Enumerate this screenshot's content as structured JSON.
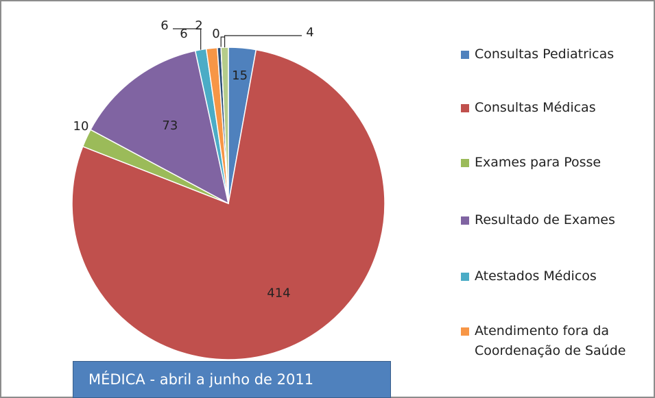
{
  "chart_data": {
    "type": "pie",
    "title": "MÉDICA - abril a junho de 2011",
    "categories": [
      "Consultas Pediatricas",
      "Consultas Médicas",
      "Exames para Posse",
      "Resultado de Exames",
      "Atestados Médicos",
      "Atendimento fora da Coordenação de Saúde",
      null,
      null,
      null
    ],
    "values": [
      15,
      414,
      10,
      73,
      6,
      6,
      2,
      0,
      4
    ],
    "colors": [
      "#4f81bd",
      "#c0504d",
      "#9bbb59",
      "#8064a2",
      "#4bacc6",
      "#f79646",
      "#2c4d75",
      "#772c2a",
      "#b5cc8a"
    ]
  }
}
